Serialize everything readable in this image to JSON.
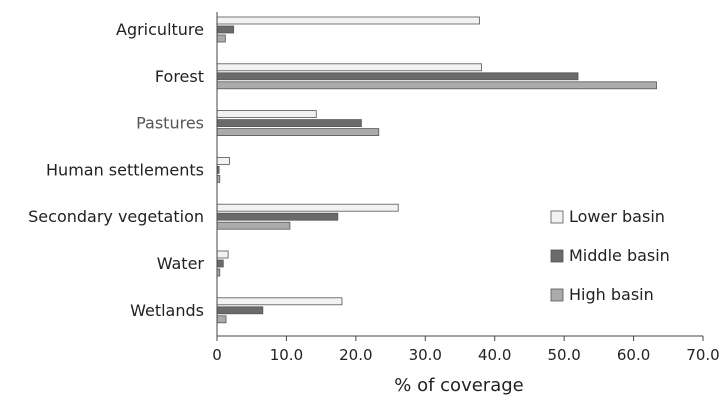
{
  "chart_data": {
    "type": "bar",
    "orientation": "horizontal",
    "categories": [
      "Agriculture",
      "Forest",
      "Pastures",
      "Human settlements",
      "Secondary vegetation",
      "Water",
      "Wetlands"
    ],
    "series": [
      {
        "name": "Lower basin",
        "color": "#f2f2f2",
        "values": [
          37.8,
          38.1,
          14.3,
          1.8,
          26.1,
          1.6,
          18.0
        ]
      },
      {
        "name": "Middle basin",
        "color": "#6b6b6b",
        "values": [
          2.4,
          52.0,
          20.8,
          0.3,
          17.4,
          0.9,
          6.6
        ]
      },
      {
        "name": "High basin",
        "color": "#ababab",
        "values": [
          1.2,
          63.3,
          23.3,
          0.4,
          10.5,
          0.4,
          1.3
        ]
      }
    ],
    "xlabel": "% of coverage",
    "ylabel": "",
    "xlim": [
      0,
      70
    ],
    "xticks": [
      "0",
      "10.0",
      "20.0",
      "30.0",
      "40.0",
      "50.0",
      "60.0",
      "70.0"
    ],
    "grid": false,
    "legend_position": "right"
  }
}
